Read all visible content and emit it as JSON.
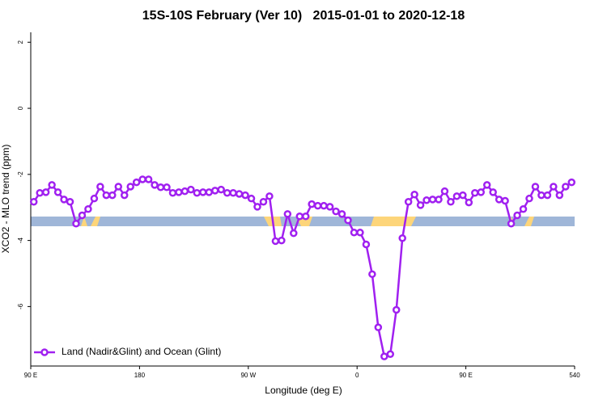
{
  "chart_data": {
    "type": "line",
    "title": "15S-10S February (Ver 10)   2015-01-01 to 2020-12-18",
    "x_label": "Longitude (deg E)",
    "y_label": "XCO2 - MLO trend (ppm)",
    "xlim": [
      90,
      540
    ],
    "xticks": [
      {
        "value": 90,
        "label": "90 E"
      },
      180,
      {
        "value": 270,
        "label": "90 W"
      },
      {
        "value": 360,
        "label": "0"
      },
      {
        "value": 450,
        "label": "90 E"
      },
      540
    ],
    "ylim": [
      -7.8,
      2.3
    ],
    "yticks": [
      -6,
      -4,
      -2,
      0,
      2
    ],
    "legend": "bottomleft",
    "series": [
      {
        "name": "Land (Nadir&Glint) and Ocean (Glint)",
        "color": "#a020f0",
        "x": [
          92.5,
          97.5,
          102.5,
          107.5,
          112.5,
          117.5,
          122.5,
          127.5,
          132.5,
          137.5,
          142.5,
          147.5,
          152.5,
          157.5,
          162.5,
          167.5,
          172.5,
          177.5,
          182.5,
          187.5,
          192.5,
          197.5,
          202.5,
          207.5,
          212.5,
          217.5,
          222.5,
          227.5,
          232.5,
          237.5,
          242.5,
          247.5,
          252.5,
          257.5,
          262.5,
          267.5,
          272.5,
          277.5,
          282.5,
          287.5,
          292.5,
          297.5,
          302.5,
          307.5,
          312.5,
          317.5,
          322.5,
          327.5,
          332.5,
          337.5,
          342.5,
          347.5,
          352.5,
          357.5,
          362.5,
          367.5,
          372.5,
          377.5,
          382.5,
          387.5,
          392.5,
          397.5,
          402.5,
          407.5,
          412.5,
          417.5,
          422.5,
          427.5,
          432.5,
          437.5,
          442.5,
          447.5,
          452.5,
          457.5,
          462.5,
          467.5,
          472.5,
          477.5,
          482.5,
          487.5,
          492.5,
          497.5,
          502.5,
          507.5,
          512.5,
          517.5,
          522.5,
          527.5,
          532.5,
          537.5
        ],
        "values": [
          -2.83,
          -2.56,
          -2.54,
          -2.32,
          -2.54,
          -2.76,
          -2.83,
          -3.49,
          -3.24,
          -3.05,
          -2.73,
          -2.37,
          -2.63,
          -2.63,
          -2.37,
          -2.63,
          -2.37,
          -2.24,
          -2.15,
          -2.15,
          -2.32,
          -2.39,
          -2.39,
          -2.56,
          -2.54,
          -2.51,
          -2.46,
          -2.56,
          -2.54,
          -2.54,
          -2.49,
          -2.46,
          -2.56,
          -2.56,
          -2.59,
          -2.63,
          -2.73,
          -2.98,
          -2.83,
          -2.66,
          -4.02,
          -4.0,
          -3.2,
          -3.78,
          -3.27,
          -3.27,
          -2.9,
          -2.95,
          -2.95,
          -2.98,
          -3.12,
          -3.2,
          -3.39,
          -3.76,
          -3.76,
          -4.12,
          -5.02,
          -6.63,
          -7.51,
          -7.44,
          -6.1,
          -3.93,
          -2.83,
          -2.61,
          -2.93,
          -2.78,
          -2.76,
          -2.76,
          -2.51,
          -2.83,
          -2.66,
          -2.63,
          -2.85,
          -2.56,
          -2.54,
          -2.32,
          -2.54,
          -2.76,
          -2.8,
          -3.49,
          -3.24,
          -3.05,
          -2.73,
          -2.37,
          -2.63,
          -2.63,
          -2.37,
          -2.63,
          -2.37,
          -2.24
        ]
      }
    ]
  }
}
